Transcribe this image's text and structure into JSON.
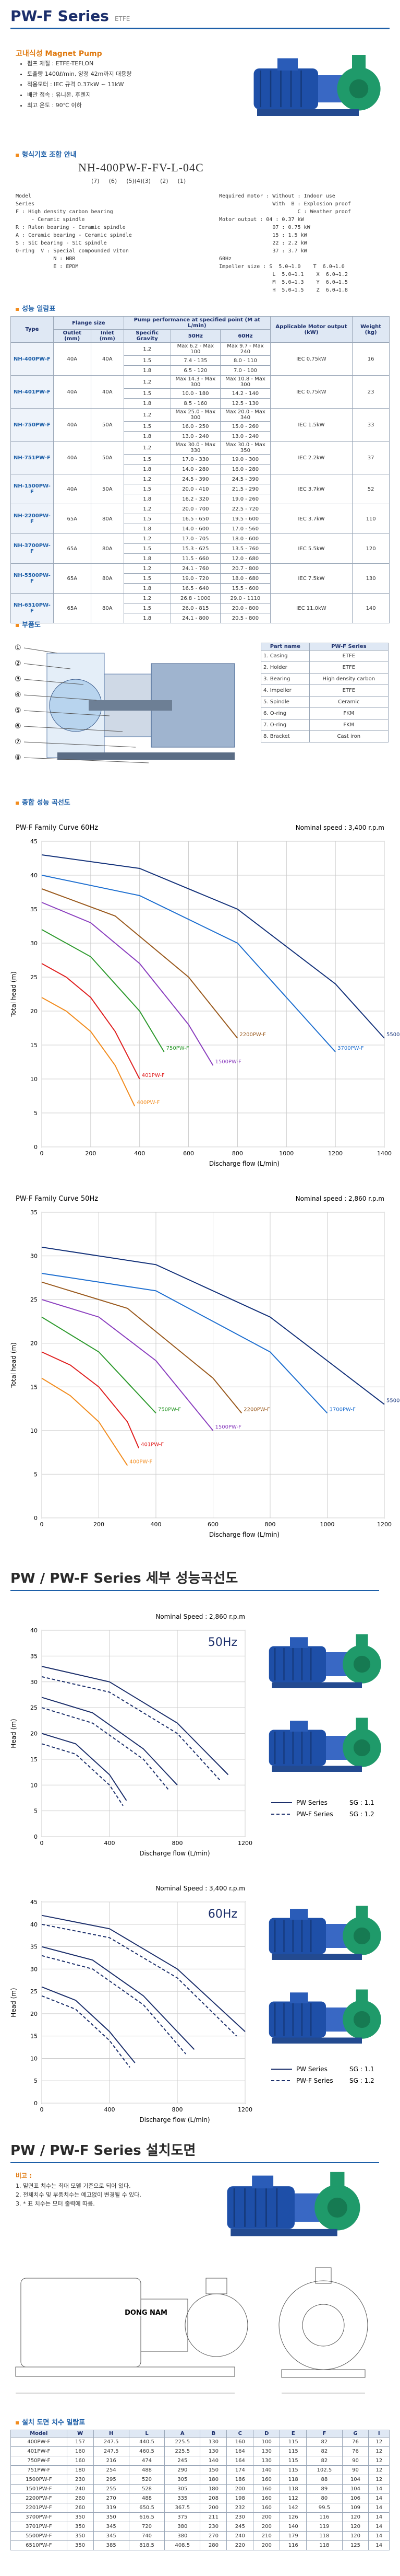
{
  "header": {
    "title": "PW-F Series",
    "tag": "ETFE"
  },
  "intro": {
    "title": "고내식성 Magnet Pump",
    "bullets": [
      "펌프 재질 : ETFE-TEFLON",
      "토출량 1400ℓ/min, 양정 42m까지 대용량",
      "적용모터 : IEC 규격 0.37kW ~ 11kW",
      "배관 접속 : 유니온, 후렌지",
      "최고 온도 : 90℃ 이하"
    ]
  },
  "model_code": {
    "title": "형식기호 조합 안내",
    "code": "NH-400PW-F-FV-L-04C",
    "positions": [
      "(7)",
      "(6)",
      "(5)(4)(3)",
      "(2)",
      "(1)"
    ],
    "left": [
      "Model",
      "Series",
      "F : High density carbon bearing",
      "     - Ceramic spindle",
      "R : Rulon bearing - Ceramic spindle",
      "A : Ceramic bearing - Ceramic spindle",
      "S : SiC bearing - SiC spindle",
      "O-ring  V : Special compounded viton",
      "            N : NBR",
      "            E : EPDM"
    ],
    "right": [
      "Required motor : Without : Indoor use",
      "                 With  B : Explosion proof",
      "                         C : Weather proof",
      "Motor output : 04 : 0.37 kW",
      "                 07 : 0.75 kW",
      "                 15 : 1.5 kW",
      "                 22 : 2.2 kW",
      "                 37 : 3.7 kW",
      "60Hz",
      "Impeller size : S  5.0→1.0    T  6.0→1.0",
      "                 L  5.0→1.1    X  6.0→1.2",
      "                 M  5.0→1.3    Y  6.0→1.5",
      "                 H  5.0→1.5    Z  6.0→1.8"
    ]
  },
  "performance_table": {
    "title": "성능 일람표",
    "header": [
      "Type",
      "Flange size",
      "Pump performance at specified point (M at L/min)",
      "Applicable Motor output (kW)",
      "Weight (kg)"
    ],
    "subheader": [
      "Outlet (mm)",
      "Inlet (mm)",
      "Specific Gravity",
      "50Hz",
      "60Hz"
    ],
    "rows": [
      {
        "type": "NH-400PW-F",
        "outlet": "40A",
        "inlet": "40A",
        "sg": [
          "1.2",
          "1.5",
          "1.8"
        ],
        "hz50": [
          "Max 6.2 - Max 100",
          "7.4 - 135",
          "6.5 - 120"
        ],
        "hz60": [
          "Max 9.7 - Max 240",
          "8.0 - 110",
          "7.0 - 100"
        ],
        "motor": "IEC 0.75kW",
        "weight": "16"
      },
      {
        "type": "NH-401PW-F",
        "outlet": "40A",
        "inlet": "40A",
        "sg": [
          "1.2",
          "1.5",
          "1.8"
        ],
        "hz50": [
          "Max 14.3 - Max 300",
          "10.0 - 180",
          "8.5 - 160"
        ],
        "hz60": [
          "Max 10.8 - Max 300",
          "14.2 - 140",
          "12.5 - 130"
        ],
        "motor": "IEC 0.75kW",
        "weight": "23"
      },
      {
        "type": "NH-750PW-F",
        "outlet": "40A",
        "inlet": "50A",
        "sg": [
          "1.2",
          "1.5",
          "1.8"
        ],
        "hz50": [
          "Max 25.0 - Max 300",
          "16.0 - 250",
          "13.0 - 240"
        ],
        "hz60": [
          "Max 20.0 - Max 340",
          "15.0 - 260",
          "13.0 - 240"
        ],
        "motor": "IEC 1.5kW",
        "weight": "33"
      },
      {
        "type": "NH-751PW-F",
        "outlet": "40A",
        "inlet": "50A",
        "sg": [
          "1.2",
          "1.5",
          "1.8"
        ],
        "hz50": [
          "Max 30.0 - Max 330",
          "17.0 - 330",
          "14.0 - 280"
        ],
        "hz60": [
          "Max 30.0 - Max 350",
          "19.0 - 300",
          "16.0 - 280"
        ],
        "motor": "IEC 2.2kW",
        "weight": "37"
      },
      {
        "type": "NH-1500PW-F",
        "outlet": "40A",
        "inlet": "50A",
        "sg": [
          "1.2",
          "1.5",
          "1.8"
        ],
        "hz50": [
          "24.5 - 390",
          "20.0 - 410",
          "16.2 - 320"
        ],
        "hz60": [
          "24.5 - 390",
          "21.5 - 290",
          "19.0 - 260"
        ],
        "motor": "IEC 3.7kW",
        "weight": "52"
      },
      {
        "type": "NH-2200PW-F",
        "outlet": "65A",
        "inlet": "80A",
        "sg": [
          "1.2",
          "1.5",
          "1.8"
        ],
        "hz50": [
          "20.0 - 700",
          "16.5 - 650",
          "14.0 - 600"
        ],
        "hz60": [
          "22.5 - 720",
          "19.5 - 600",
          "17.0 - 560"
        ],
        "motor": "IEC 3.7kW",
        "weight": "110"
      },
      {
        "type": "NH-3700PW-F",
        "outlet": "65A",
        "inlet": "80A",
        "sg": [
          "1.2",
          "1.5",
          "1.8"
        ],
        "hz50": [
          "17.0 - 705",
          "15.3 - 625",
          "11.5 - 660"
        ],
        "hz60": [
          "18.0 - 600",
          "13.5 - 760",
          "12.0 - 680"
        ],
        "motor": "IEC 5.5kW",
        "weight": "120"
      },
      {
        "type": "NH-5500PW-F",
        "outlet": "65A",
        "inlet": "80A",
        "sg": [
          "1.2",
          "1.5",
          "1.8"
        ],
        "hz50": [
          "24.1 - 760",
          "19.0 - 720",
          "16.5 - 640"
        ],
        "hz60": [
          "20.7 - 800",
          "18.0 - 680",
          "15.5 - 600"
        ],
        "motor": "IEC 7.5kW",
        "weight": "130"
      },
      {
        "type": "NH-6510PW-F",
        "outlet": "65A",
        "inlet": "80A",
        "sg": [
          "1.2",
          "1.5",
          "1.8"
        ],
        "hz50": [
          "26.8 - 1000",
          "26.0 - 815",
          "24.1 - 800"
        ],
        "hz60": [
          "29.0 - 1110",
          "20.0 - 800",
          "20.5 - 800"
        ],
        "motor": "IEC 11.0kW",
        "weight": "140"
      }
    ]
  },
  "parts": {
    "title": "부품도",
    "callouts": [
      "①",
      "②",
      "③",
      "④",
      "⑤",
      "⑥",
      "⑦",
      "⑧"
    ],
    "header": [
      "Part name",
      "PW-F Series"
    ],
    "rows": [
      [
        "1. Casing",
        "ETFE"
      ],
      [
        "2. Holder",
        "ETFE"
      ],
      [
        "3. Bearing",
        "High density carbon"
      ],
      [
        "4. Impeller",
        "ETFE"
      ],
      [
        "5. Spindle",
        "Ceramic"
      ],
      [
        "6. O-ring",
        "FKM"
      ],
      [
        "7. O-ring",
        "FKM"
      ],
      [
        "8. Bracket",
        "Cast iron"
      ]
    ]
  },
  "curves_title": "종합 성능 곡선도",
  "detail_title": "PW / PW-F Series 세부 성능곡선도",
  "chart_data": [
    {
      "type": "line",
      "title": "PW-F Family Curve 60Hz",
      "subtitle": "Nominal speed : 3,400 r.p.m",
      "x_label": "Discharge flow (L/min)",
      "y_label": "Total head (m)",
      "xlim": [
        0,
        1400
      ],
      "xticks": [
        0,
        200,
        400,
        600,
        800,
        1000,
        1200,
        1400
      ],
      "ylim": [
        0,
        45
      ],
      "yticks": [
        0,
        5,
        10,
        15,
        20,
        25,
        30,
        35,
        40,
        45
      ],
      "grid": true,
      "color": "#333333",
      "series": [
        {
          "name": "400PW-F",
          "color": "#f28c1e",
          "x": [
            0,
            100,
            200,
            300,
            380
          ],
          "values": [
            22,
            20,
            17,
            12,
            6
          ]
        },
        {
          "name": "401PW-F",
          "color": "#e02020",
          "x": [
            0,
            100,
            200,
            300,
            400
          ],
          "values": [
            27,
            25,
            22,
            17,
            10
          ]
        },
        {
          "name": "750PW-F",
          "color": "#2e9a2e",
          "x": [
            0,
            200,
            400,
            500
          ],
          "values": [
            32,
            28,
            20,
            14
          ]
        },
        {
          "name": "1500PW-F",
          "color": "#8b3fbf",
          "x": [
            0,
            200,
            400,
            600,
            700
          ],
          "values": [
            36,
            33,
            27,
            18,
            12
          ]
        },
        {
          "name": "2200PW-F",
          "color": "#9a5a1e",
          "x": [
            0,
            300,
            600,
            800
          ],
          "values": [
            38,
            34,
            25,
            16
          ]
        },
        {
          "name": "3700PW-F",
          "color": "#1e6fd0",
          "x": [
            0,
            400,
            800,
            1000,
            1200
          ],
          "values": [
            40,
            37,
            30,
            22,
            14
          ]
        },
        {
          "name": "5500PW-F",
          "color": "#14327a",
          "x": [
            0,
            400,
            800,
            1200,
            1400
          ],
          "values": [
            43,
            41,
            35,
            24,
            16
          ]
        }
      ]
    },
    {
      "type": "line",
      "title": "PW-F Family Curve 50Hz",
      "subtitle": "Nominal speed : 2,860 r.p.m",
      "x_label": "Discharge flow (L/min)",
      "y_label": "Total head (m)",
      "xlim": [
        0,
        1200
      ],
      "xticks": [
        0,
        200,
        400,
        600,
        800,
        1000,
        1200
      ],
      "ylim": [
        0,
        35
      ],
      "yticks": [
        0,
        5,
        10,
        15,
        20,
        25,
        30,
        35
      ],
      "grid": true,
      "color": "#333333",
      "series": [
        {
          "name": "400PW-F",
          "color": "#f28c1e",
          "x": [
            0,
            100,
            200,
            300
          ],
          "values": [
            16,
            14,
            11,
            6
          ]
        },
        {
          "name": "401PW-F",
          "color": "#e02020",
          "x": [
            0,
            100,
            200,
            300,
            340
          ],
          "values": [
            19,
            17.5,
            15,
            11,
            8
          ]
        },
        {
          "name": "750PW-F",
          "color": "#2e9a2e",
          "x": [
            0,
            200,
            400
          ],
          "values": [
            23,
            19,
            12
          ]
        },
        {
          "name": "1500PW-F",
          "color": "#8b3fbf",
          "x": [
            0,
            200,
            400,
            600
          ],
          "values": [
            25,
            23,
            18,
            10
          ]
        },
        {
          "name": "2200PW-F",
          "color": "#9a5a1e",
          "x": [
            0,
            300,
            600,
            700
          ],
          "values": [
            27,
            24,
            16,
            12
          ]
        },
        {
          "name": "3700PW-F",
          "color": "#1e6fd0",
          "x": [
            0,
            400,
            800,
            1000
          ],
          "values": [
            28,
            26,
            19,
            12
          ]
        },
        {
          "name": "5500PW-F",
          "color": "#14327a",
          "x": [
            0,
            400,
            800,
            1200
          ],
          "values": [
            31,
            29,
            23,
            13
          ]
        }
      ]
    },
    {
      "type": "line",
      "subtitle": "Nominal Speed : 2,860 r.p.m",
      "label": "50Hz",
      "x_label": "Discharge flow (L/min)",
      "y_label": "Head (m)",
      "xlim": [
        0,
        1200
      ],
      "xticks": [
        0,
        400,
        800,
        1200
      ],
      "ylim": [
        0,
        40
      ],
      "yticks": [
        0,
        5,
        10,
        15,
        20,
        25,
        30,
        35,
        40
      ],
      "grid": true,
      "color": "#1c2f6b",
      "series": [
        {
          "style": "solid",
          "x": [
            0,
            200,
            400,
            500
          ],
          "values": [
            20,
            18,
            12,
            7
          ]
        },
        {
          "style": "dashed",
          "x": [
            0,
            200,
            400,
            480
          ],
          "values": [
            18,
            16,
            10,
            6
          ]
        },
        {
          "style": "solid",
          "x": [
            0,
            300,
            600,
            800
          ],
          "values": [
            27,
            24,
            17,
            10
          ]
        },
        {
          "style": "dashed",
          "x": [
            0,
            300,
            600,
            750
          ],
          "values": [
            25,
            22,
            15,
            9
          ]
        },
        {
          "style": "solid",
          "x": [
            0,
            400,
            800,
            1100
          ],
          "values": [
            33,
            30,
            22,
            12
          ]
        },
        {
          "style": "dashed",
          "x": [
            0,
            400,
            800,
            1050
          ],
          "values": [
            31,
            28,
            20,
            11
          ]
        }
      ],
      "legend": [
        {
          "text": "PW Series",
          "note": "SG : 1.1",
          "style": "solid"
        },
        {
          "text": "PW-F Series",
          "note": "SG : 1.2",
          "style": "dashed"
        }
      ]
    },
    {
      "type": "line",
      "subtitle": "Nominal Speed : 3,400 r.p.m",
      "label": "60Hz",
      "x_label": "Discharge flow (L/min)",
      "y_label": "Head (m)",
      "xlim": [
        0,
        1200
      ],
      "xticks": [
        0,
        400,
        800,
        1200
      ],
      "ylim": [
        0,
        45
      ],
      "yticks": [
        0,
        5,
        10,
        15,
        20,
        25,
        30,
        35,
        40,
        45
      ],
      "grid": true,
      "color": "#1c2f6b",
      "series": [
        {
          "style": "solid",
          "x": [
            0,
            200,
            400,
            550
          ],
          "values": [
            26,
            23,
            16,
            9
          ]
        },
        {
          "style": "dashed",
          "x": [
            0,
            200,
            400,
            520
          ],
          "values": [
            24,
            21,
            14,
            8
          ]
        },
        {
          "style": "solid",
          "x": [
            0,
            300,
            600,
            900
          ],
          "values": [
            35,
            32,
            24,
            12
          ]
        },
        {
          "style": "dashed",
          "x": [
            0,
            300,
            600,
            850
          ],
          "values": [
            33,
            30,
            22,
            11
          ]
        },
        {
          "style": "solid",
          "x": [
            0,
            400,
            800,
            1200
          ],
          "values": [
            42,
            39,
            30,
            16
          ]
        },
        {
          "style": "dashed",
          "x": [
            0,
            400,
            800,
            1150
          ],
          "values": [
            40,
            37,
            28,
            15
          ]
        }
      ],
      "legend": [
        {
          "text": "PW Series",
          "note": "SG : 1.1",
          "style": "solid"
        },
        {
          "text": "PW-F Series",
          "note": "SG : 1.2",
          "style": "dashed"
        }
      ]
    }
  ],
  "installation": {
    "title": "PW / PW-F Series 설치도면",
    "notes_title": "비고 :",
    "notes": [
      "1. 밑면표 치수는 최대 모델 기준으로 되어 있다.",
      "2. 전체치수 및 부품치수는 예고없이 변경될 수 있다.",
      "3. * 표 치수는 모터 출력에 따름."
    ],
    "brand": "DONG NAM"
  },
  "dimension_table": {
    "title": "설치 도면 치수 일람표",
    "header": [
      "Model",
      "W",
      "H",
      "L",
      "A",
      "B",
      "C",
      "D",
      "E",
      "F",
      "G",
      "I"
    ],
    "rows": [
      [
        "400PW-F",
        "157",
        "247.5",
        "440.5",
        "225.5",
        "130",
        "160",
        "100",
        "115",
        "82",
        "76",
        "12"
      ],
      [
        "401PW-F",
        "160",
        "247.5",
        "460.5",
        "225.5",
        "130",
        "164",
        "130",
        "115",
        "82",
        "76",
        "12"
      ],
      [
        "750PW-F",
        "160",
        "216",
        "474",
        "245",
        "140",
        "164",
        "130",
        "115",
        "82",
        "90",
        "12"
      ],
      [
        "751PW-F",
        "180",
        "254",
        "488",
        "290",
        "150",
        "174",
        "140",
        "115",
        "102.5",
        "90",
        "12"
      ],
      [
        "1500PW-F",
        "230",
        "295",
        "520",
        "305",
        "180",
        "186",
        "160",
        "118",
        "88",
        "104",
        "12"
      ],
      [
        "1501PW-F",
        "240",
        "255",
        "528",
        "305",
        "180",
        "200",
        "160",
        "118",
        "89",
        "104",
        "14"
      ],
      [
        "2200PW-F",
        "260",
        "270",
        "488",
        "335",
        "208",
        "198",
        "160",
        "112",
        "80",
        "106",
        "14"
      ],
      [
        "2201PW-F",
        "260",
        "319",
        "650.5",
        "367.5",
        "200",
        "232",
        "160",
        "142",
        "99.5",
        "109",
        "14"
      ],
      [
        "3700PW-F",
        "350",
        "350",
        "616.5",
        "375",
        "211",
        "230",
        "200",
        "126",
        "116",
        "120",
        "14"
      ],
      [
        "3701PW-F",
        "350",
        "345",
        "720",
        "380",
        "230",
        "245",
        "200",
        "140",
        "119",
        "120",
        "14"
      ],
      [
        "5500PW-F",
        "350",
        "345",
        "740",
        "380",
        "270",
        "240",
        "210",
        "179",
        "118",
        "120",
        "14"
      ],
      [
        "6510PW-F",
        "350",
        "385",
        "818.5",
        "408.5",
        "280",
        "220",
        "200",
        "116",
        "118",
        "125",
        "14"
      ]
    ]
  }
}
